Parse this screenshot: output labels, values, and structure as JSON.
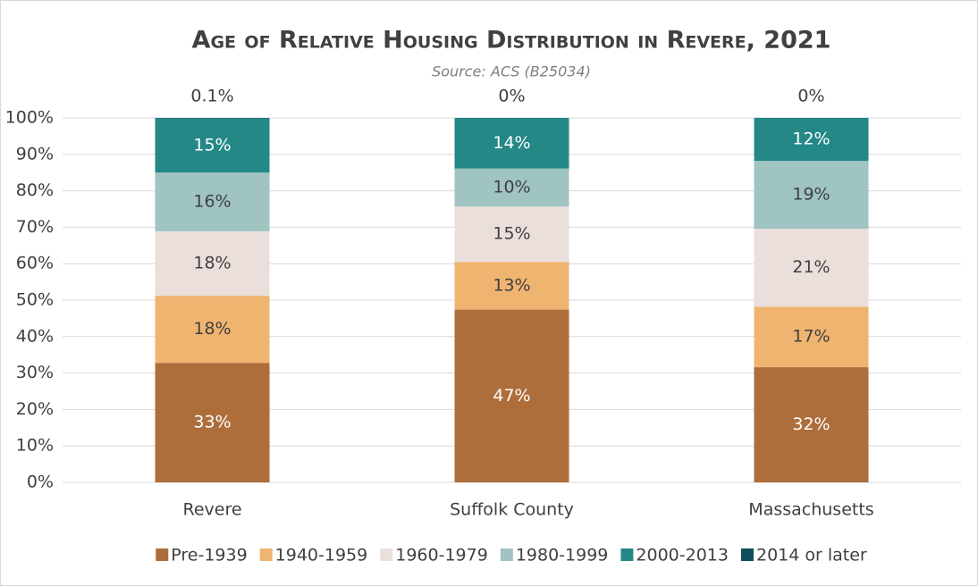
{
  "chart_data": {
    "type": "stacked_bar",
    "title": "Age of Relative Housing Distribution in Revere, 2021",
    "subtitle": "Source: ACS (B25034)",
    "categories": [
      "Revere",
      "Suffolk County",
      "Massachusetts"
    ],
    "series": [
      {
        "name": "Pre-1939",
        "color": "#ad6e3b",
        "values": [
          32.8,
          47.4,
          31.6
        ],
        "value_labels": [
          "33%",
          "47%",
          "32%"
        ]
      },
      {
        "name": "1940-1959",
        "color": "#f0b471",
        "values": [
          18.4,
          13.1,
          16.6
        ],
        "value_labels": [
          "18%",
          "13%",
          "17%"
        ]
      },
      {
        "name": "1960-1979",
        "color": "#ebdfdb",
        "values": [
          17.7,
          15.2,
          21.4
        ],
        "value_labels": [
          "18%",
          "15%",
          "21%"
        ]
      },
      {
        "name": "1980-1999",
        "color": "#9fc4c2",
        "values": [
          16.1,
          10.4,
          18.6
        ],
        "value_labels": [
          "16%",
          "10%",
          "19%"
        ]
      },
      {
        "name": "2000-2013",
        "color": "#248887",
        "values": [
          14.9,
          13.9,
          11.8
        ],
        "value_labels": [
          "15%",
          "14%",
          "12%"
        ]
      },
      {
        "name": "2014 or later",
        "color": "#114d5d",
        "values": [
          0.1,
          0,
          0
        ],
        "value_labels": [
          "0.1%",
          "0%",
          "0%"
        ]
      }
    ],
    "ylim": [
      0,
      100
    ],
    "yticks": [
      {
        "value": 0,
        "label": "0%"
      },
      {
        "value": 10,
        "label": "10%"
      },
      {
        "value": 20,
        "label": "20%"
      },
      {
        "value": 30,
        "label": "30%"
      },
      {
        "value": 40,
        "label": "40%"
      },
      {
        "value": 50,
        "label": "50%"
      },
      {
        "value": 60,
        "label": "60%"
      },
      {
        "value": 70,
        "label": "70%"
      },
      {
        "value": 80,
        "label": "80%"
      },
      {
        "value": 90,
        "label": "90%"
      },
      {
        "value": 100,
        "label": "100%"
      }
    ],
    "grid": true,
    "legend": "bottom"
  }
}
